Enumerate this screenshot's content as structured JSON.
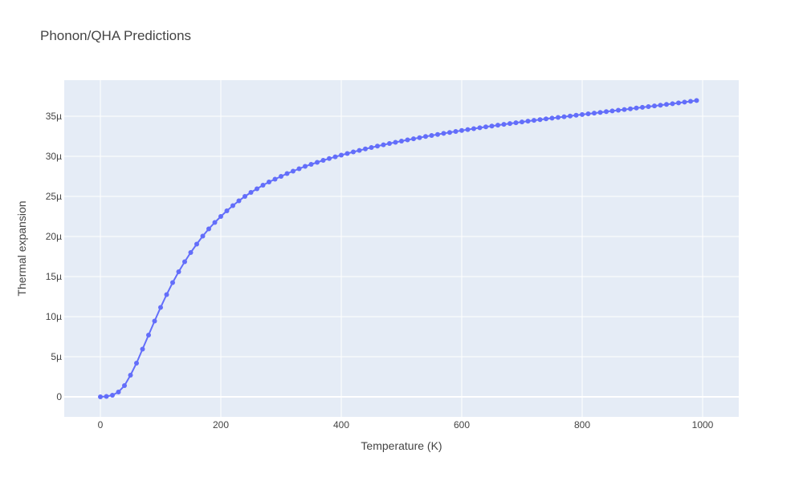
{
  "chart_data": {
    "type": "line",
    "title": "Phonon/QHA Predictions",
    "xlabel": "Temperature (K)",
    "ylabel": "Thermal expansion",
    "xlim": [
      -60,
      1060
    ],
    "ylim": [
      -2.5,
      39.5
    ],
    "x_ticks": [
      0,
      200,
      400,
      600,
      800,
      1000
    ],
    "x_tick_labels": [
      "0",
      "200",
      "400",
      "600",
      "800",
      "1000"
    ],
    "y_ticks": [
      0,
      5,
      10,
      15,
      20,
      25,
      30,
      35
    ],
    "y_tick_labels": [
      "0",
      "5µ",
      "10µ",
      "15µ",
      "20µ",
      "25µ",
      "30µ",
      "35µ"
    ],
    "grid": true,
    "legend": "none",
    "colors": {
      "plot_bg": "#e5ecf6",
      "grid": "#ffffff",
      "series": "#636efa"
    },
    "series": [
      {
        "mode": "lines+markers",
        "x": [
          0,
          10,
          20,
          30,
          40,
          50,
          60,
          70,
          80,
          90,
          100,
          110,
          120,
          130,
          140,
          150,
          160,
          170,
          180,
          190,
          200,
          210,
          220,
          230,
          240,
          250,
          260,
          270,
          280,
          290,
          300,
          310,
          320,
          330,
          340,
          350,
          360,
          370,
          380,
          390,
          400,
          410,
          420,
          430,
          440,
          450,
          460,
          470,
          480,
          490,
          500,
          510,
          520,
          530,
          540,
          550,
          560,
          570,
          580,
          590,
          600,
          610,
          620,
          630,
          640,
          650,
          660,
          670,
          680,
          690,
          700,
          710,
          720,
          730,
          740,
          750,
          760,
          770,
          780,
          790,
          800,
          810,
          820,
          830,
          840,
          850,
          860,
          870,
          880,
          890,
          900,
          910,
          920,
          930,
          940,
          950,
          960,
          970,
          980,
          990
        ],
        "y": [
          0.0,
          0.05,
          0.2,
          0.6,
          1.4,
          2.7,
          4.2,
          5.95,
          7.7,
          9.45,
          11.15,
          12.75,
          14.25,
          15.6,
          16.85,
          18.0,
          19.05,
          20.05,
          20.95,
          21.75,
          22.5,
          23.2,
          23.85,
          24.45,
          25.0,
          25.5,
          25.95,
          26.4,
          26.8,
          27.15,
          27.5,
          27.85,
          28.15,
          28.45,
          28.75,
          29.0,
          29.25,
          29.5,
          29.72,
          29.94,
          30.15,
          30.35,
          30.55,
          30.74,
          30.92,
          31.1,
          31.27,
          31.44,
          31.6,
          31.75,
          31.9,
          32.05,
          32.19,
          32.33,
          32.47,
          32.6,
          32.73,
          32.86,
          32.98,
          33.1,
          33.22,
          33.34,
          33.45,
          33.56,
          33.67,
          33.78,
          33.89,
          33.99,
          34.09,
          34.19,
          34.29,
          34.39,
          34.49,
          34.58,
          34.67,
          34.76,
          34.85,
          34.94,
          35.03,
          35.12,
          35.21,
          35.3,
          35.39,
          35.48,
          35.57,
          35.66,
          35.75,
          35.84,
          35.93,
          36.02,
          36.11,
          36.2,
          36.29,
          36.38,
          36.47,
          36.56,
          36.66,
          36.76,
          36.86,
          36.96
        ]
      }
    ]
  }
}
